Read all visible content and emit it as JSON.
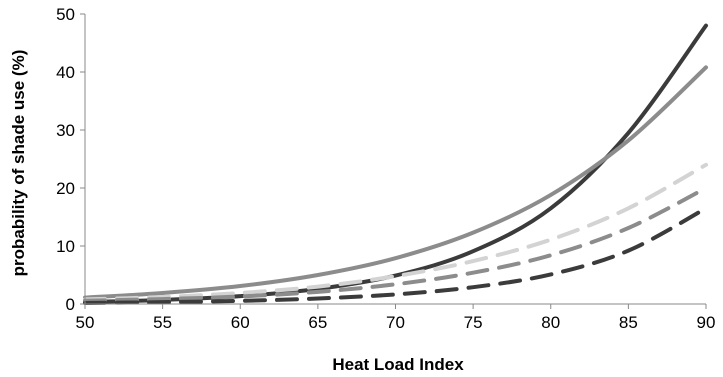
{
  "chart_data": {
    "type": "line",
    "title": "",
    "xlabel": "Heat Load Index",
    "ylabel": "probability of shade use (%)",
    "xlim": [
      50,
      90
    ],
    "ylim": [
      0,
      50
    ],
    "x_ticks": [
      50,
      55,
      60,
      65,
      70,
      75,
      80,
      85,
      90
    ],
    "y_ticks": [
      0,
      10,
      20,
      30,
      40,
      50
    ],
    "grid": false,
    "legend": "none",
    "series": [
      {
        "style": "solid",
        "color": "#3b3b3b",
        "x": [
          50,
          55,
          60,
          65,
          70,
          75,
          80,
          85,
          90
        ],
        "y": [
          0.33,
          0.7,
          1.35,
          2.6,
          4.9,
          9.1,
          16.5,
          29.5,
          48.0
        ]
      },
      {
        "style": "solid",
        "color": "#8c8c8c",
        "x": [
          50,
          55,
          60,
          65,
          70,
          75,
          80,
          85,
          90
        ],
        "y": [
          1.1,
          1.9,
          3.1,
          5.0,
          7.9,
          12.3,
          18.8,
          28.2,
          40.8
        ]
      },
      {
        "style": "dashed",
        "color": "#d3d3d3",
        "x": [
          50,
          55,
          60,
          65,
          70,
          75,
          80,
          85,
          90
        ],
        "y": [
          0.8,
          1.2,
          1.9,
          3.0,
          4.8,
          7.4,
          11.1,
          16.5,
          24.0
        ]
      },
      {
        "style": "dashed",
        "color": "#8c8c8c",
        "x": [
          50,
          55,
          60,
          65,
          70,
          75,
          80,
          85,
          90
        ],
        "y": [
          0.55,
          0.85,
          1.3,
          2.1,
          3.4,
          5.4,
          8.4,
          13.1,
          20.0
        ]
      },
      {
        "style": "dashed",
        "color": "#3b3b3b",
        "x": [
          50,
          55,
          60,
          65,
          70,
          75,
          80,
          85,
          90
        ],
        "y": [
          0.18,
          0.32,
          0.55,
          0.95,
          1.65,
          2.9,
          5.1,
          9.2,
          16.5
        ]
      }
    ]
  }
}
